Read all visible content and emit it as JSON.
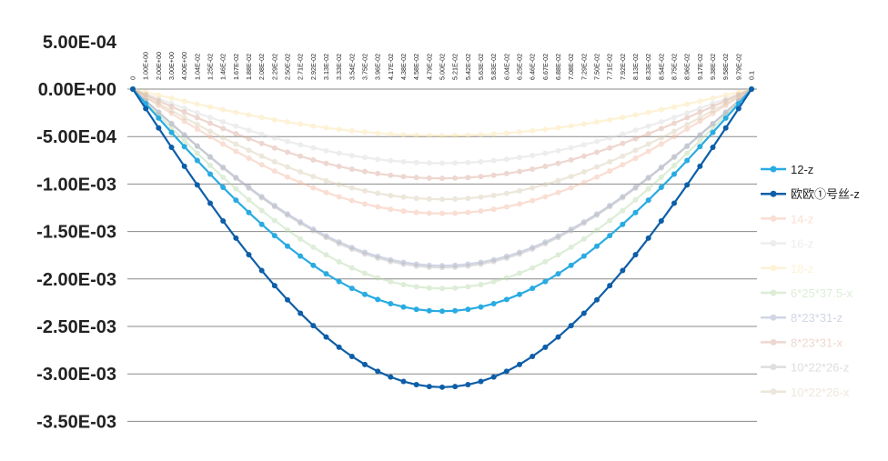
{
  "chart_data": {
    "type": "line",
    "title": "",
    "xlabel": "",
    "ylabel": "",
    "ylim": [
      -0.0035,
      0.0005
    ],
    "yticks": [
      "5.00E-04",
      "0.00E+00",
      "-5.00E-04",
      "-1.00E-03",
      "-1.50E-03",
      "-2.00E-03",
      "-2.50E-03",
      "-3.00E-03",
      "-3.50E-03"
    ],
    "ytick_values": [
      0.0005,
      0,
      -0.0005,
      -0.001,
      -0.0015,
      -0.002,
      -0.0025,
      -0.003,
      -0.0035
    ],
    "x_labels": [
      "0",
      "1.00E+00",
      "2.00E+00",
      "3.00E+00",
      "4.00E+00",
      "1.04E-02",
      "1.25E-02",
      "1.46E-02",
      "1.67E-02",
      "1.88E-02",
      "2.08E-02",
      "2.29E-02",
      "2.50E-02",
      "2.71E-02",
      "2.92E-02",
      "3.13E-02",
      "3.33E-02",
      "3.54E-02",
      "3.75E-02",
      "3.96E-02",
      "4.17E-02",
      "4.38E-02",
      "4.58E-02",
      "4.79E-02",
      "5.00E-02",
      "5.21E-02",
      "5.42E-02",
      "5.63E-02",
      "5.83E-02",
      "6.04E-02",
      "6.25E-02",
      "6.46E-02",
      "6.67E-02",
      "6.88E-02",
      "7.08E-02",
      "7.29E-02",
      "7.50E-02",
      "7.71E-02",
      "7.92E-02",
      "8.13E-02",
      "8.33E-02",
      "8.54E-02",
      "8.75E-02",
      "8.96E-02",
      "9.17E-02",
      "9.38E-02",
      "9.58E-02",
      "9.79E-02",
      "0.1"
    ],
    "grid": true,
    "legend_position": "right",
    "series": [
      {
        "name": "12-z",
        "color": "#29abe2",
        "opacity": 1.0,
        "min": -0.00234
      },
      {
        "name": "欧欧①号丝-z",
        "color": "#0d5ea8",
        "opacity": 1.0,
        "min": -0.00314
      },
      {
        "name": "14-z",
        "color": "#f2b8a0",
        "opacity": 0.45,
        "min": -0.00131
      },
      {
        "name": "16-z",
        "color": "#d9d9d9",
        "opacity": 0.45,
        "min": -0.00078
      },
      {
        "name": "18-z",
        "color": "#fce3a6",
        "opacity": 0.45,
        "min": -0.00049
      },
      {
        "name": "6*25*37.5-x",
        "color": "#b5d8a8",
        "opacity": 0.45,
        "min": -0.0021
      },
      {
        "name": "8*23*31-z",
        "color": "#9aa6c8",
        "opacity": 0.45,
        "min": -0.00186
      },
      {
        "name": "8*23*31-x",
        "color": "#d8a898",
        "opacity": 0.45,
        "min": -0.00094
      },
      {
        "name": "10*22*26-z",
        "color": "#b8b8b8",
        "opacity": 0.45,
        "min": -0.00188
      },
      {
        "name": "10*22*26-x",
        "color": "#d8ccb0",
        "opacity": 0.45,
        "min": -0.00116
      }
    ]
  }
}
